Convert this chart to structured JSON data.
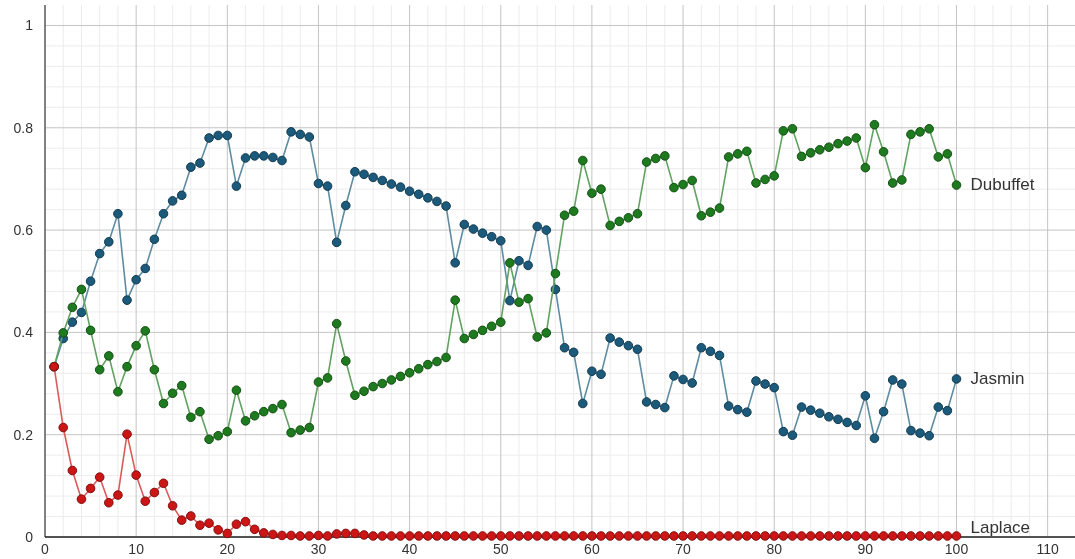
{
  "chart_data": {
    "type": "line",
    "x": [
      1,
      2,
      3,
      4,
      5,
      6,
      7,
      8,
      9,
      10,
      11,
      12,
      13,
      14,
      15,
      16,
      17,
      18,
      19,
      20,
      21,
      22,
      23,
      24,
      25,
      26,
      27,
      28,
      29,
      30,
      31,
      32,
      33,
      34,
      35,
      36,
      37,
      38,
      39,
      40,
      41,
      42,
      43,
      44,
      45,
      46,
      47,
      48,
      49,
      50,
      51,
      52,
      53,
      54,
      55,
      56,
      57,
      58,
      59,
      60,
      61,
      62,
      63,
      64,
      65,
      66,
      67,
      68,
      69,
      70,
      71,
      72,
      73,
      74,
      75,
      76,
      77,
      78,
      79,
      80,
      81,
      82,
      83,
      84,
      85,
      86,
      87,
      88,
      89,
      90,
      91,
      92,
      93,
      94,
      95,
      96,
      97,
      98,
      99,
      100
    ],
    "series": [
      {
        "name": "Jasmin",
        "color": "#1b5a7a",
        "values": [
          0.333,
          0.388,
          0.42,
          0.439,
          0.5,
          0.554,
          0.577,
          0.632,
          0.463,
          0.503,
          0.525,
          0.582,
          0.632,
          0.657,
          0.668,
          0.723,
          0.731,
          0.78,
          0.785,
          0.785,
          0.686,
          0.741,
          0.745,
          0.745,
          0.742,
          0.736,
          0.792,
          0.787,
          0.782,
          0.691,
          0.686,
          0.576,
          0.648,
          0.714,
          0.709,
          0.703,
          0.697,
          0.69,
          0.684,
          0.676,
          0.67,
          0.663,
          0.656,
          0.647,
          0.536,
          0.611,
          0.602,
          0.594,
          0.587,
          0.579,
          0.462,
          0.54,
          0.531,
          0.607,
          0.6,
          0.484,
          0.37,
          0.361,
          0.261,
          0.324,
          0.318,
          0.389,
          0.381,
          0.374,
          0.367,
          0.264,
          0.259,
          0.253,
          0.315,
          0.308,
          0.301,
          0.37,
          0.363,
          0.355,
          0.256,
          0.249,
          0.244,
          0.305,
          0.299,
          0.292,
          0.206,
          0.199,
          0.254,
          0.248,
          0.242,
          0.235,
          0.23,
          0.224,
          0.218,
          0.276,
          0.193,
          0.245,
          0.307,
          0.299,
          0.208,
          0.203,
          0.198,
          0.254,
          0.247,
          0.309
        ]
      },
      {
        "name": "Dubuffet",
        "color": "#1e7a1e",
        "values": [
          0.333,
          0.399,
          0.449,
          0.484,
          0.404,
          0.327,
          0.354,
          0.284,
          0.333,
          0.374,
          0.403,
          0.327,
          0.261,
          0.281,
          0.296,
          0.234,
          0.245,
          0.191,
          0.198,
          0.206,
          0.287,
          0.227,
          0.237,
          0.245,
          0.251,
          0.259,
          0.204,
          0.209,
          0.214,
          0.303,
          0.311,
          0.417,
          0.344,
          0.277,
          0.285,
          0.294,
          0.3,
          0.307,
          0.314,
          0.321,
          0.329,
          0.337,
          0.343,
          0.351,
          0.463,
          0.388,
          0.396,
          0.404,
          0.412,
          0.42,
          0.536,
          0.459,
          0.466,
          0.391,
          0.399,
          0.515,
          0.629,
          0.637,
          0.736,
          0.672,
          0.68,
          0.609,
          0.617,
          0.624,
          0.632,
          0.733,
          0.74,
          0.745,
          0.683,
          0.689,
          0.697,
          0.628,
          0.635,
          0.643,
          0.743,
          0.749,
          0.754,
          0.692,
          0.699,
          0.706,
          0.794,
          0.798,
          0.744,
          0.751,
          0.757,
          0.762,
          0.769,
          0.774,
          0.78,
          0.722,
          0.806,
          0.753,
          0.692,
          0.698,
          0.787,
          0.792,
          0.798,
          0.743,
          0.749,
          0.688
        ]
      },
      {
        "name": "Laplace",
        "color": "#cc1515",
        "values": [
          0.333,
          0.214,
          0.13,
          0.074,
          0.095,
          0.117,
          0.067,
          0.082,
          0.201,
          0.121,
          0.07,
          0.087,
          0.105,
          0.061,
          0.033,
          0.041,
          0.023,
          0.027,
          0.014,
          0.007,
          0.025,
          0.03,
          0.015,
          0.008,
          0.005,
          0.003,
          0.003,
          0.002,
          0.002,
          0.003,
          0.002,
          0.006,
          0.007,
          0.007,
          0.004,
          0.002,
          0.002,
          0.002,
          0.002,
          0.002,
          0.002,
          0.002,
          0.002,
          0.002,
          0.002,
          0.002,
          0.002,
          0.002,
          0.002,
          0.002,
          0.002,
          0.002,
          0.002,
          0.002,
          0.002,
          0.002,
          0.002,
          0.002,
          0.002,
          0.002,
          0.002,
          0.002,
          0.002,
          0.002,
          0.002,
          0.002,
          0.002,
          0.002,
          0.002,
          0.002,
          0.002,
          0.002,
          0.002,
          0.002,
          0.002,
          0.002,
          0.002,
          0.002,
          0.002,
          0.002,
          0.002,
          0.002,
          0.002,
          0.002,
          0.002,
          0.002,
          0.002,
          0.002,
          0.002,
          0.002,
          0.002,
          0.002,
          0.002,
          0.002,
          0.002,
          0.002,
          0.002,
          0.002,
          0.002,
          0.002
        ]
      }
    ],
    "xlim": [
      0,
      113
    ],
    "ylim": [
      0,
      1.04
    ],
    "xticks": [
      0,
      10,
      20,
      30,
      40,
      50,
      60,
      70,
      80,
      90,
      100,
      110
    ],
    "yticks": [
      0,
      0.2,
      0.4,
      0.6,
      0.8,
      1
    ],
    "grid": true,
    "legend": false,
    "marker": "circle",
    "line_style": "solid"
  }
}
